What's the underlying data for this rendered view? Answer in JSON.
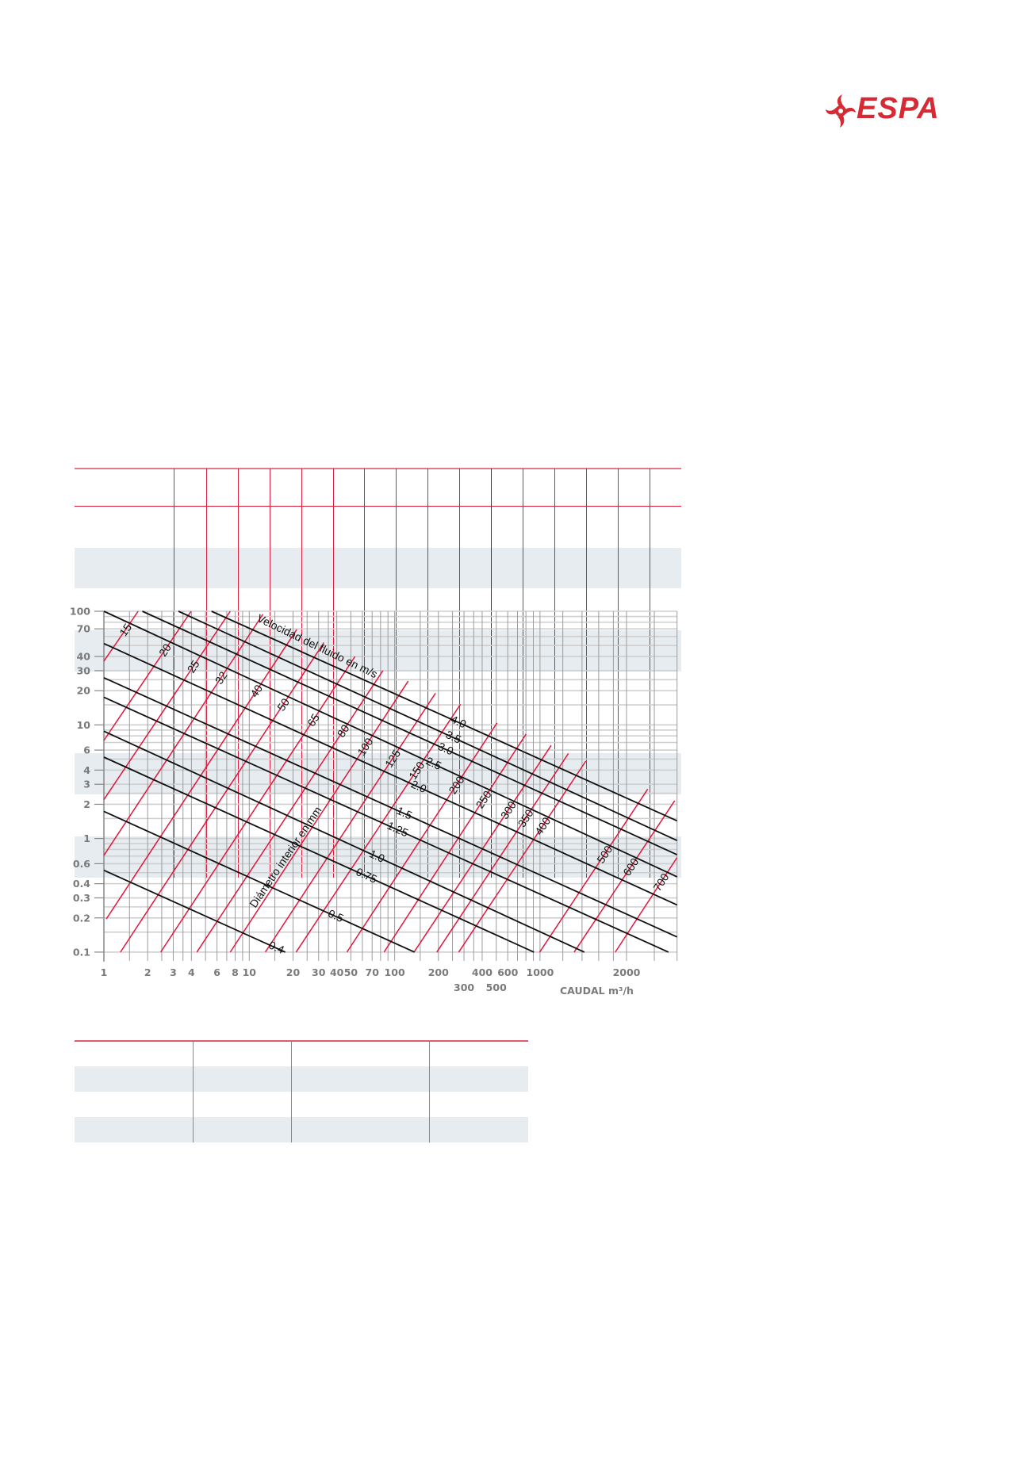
{
  "logo": {
    "text": "ESPA",
    "icon": "impeller-swirl-icon",
    "color": "#d62a35"
  },
  "colors": {
    "accent_red": "#dc1f3c",
    "table_band": "#e6ecef",
    "grid": "#a8a8a8",
    "velocity_line": "#111111",
    "diameter_line": "#e0163d"
  },
  "chart_data": {
    "type": "line",
    "xscale": "log",
    "yscale": "log",
    "xlim": [
      1,
      3000
    ],
    "ylim": [
      0.1,
      100
    ],
    "grid": true,
    "xlabel": "CAUDAL  m³/h",
    "velocity_title": "Velocidad del fluido en m/s",
    "diameter_title": "Diámetro interior en mm",
    "x_ticks": [
      {
        "value": 1,
        "label": "1"
      },
      {
        "value": 2,
        "label": "2"
      },
      {
        "value": 3,
        "label": "3"
      },
      {
        "value": 4,
        "label": "4"
      },
      {
        "value": 6,
        "label": "6"
      },
      {
        "value": 8,
        "label": "8"
      },
      {
        "value": 10,
        "label": "10"
      },
      {
        "value": 20,
        "label": "20"
      },
      {
        "value": 30,
        "label": "30"
      },
      {
        "value": 40,
        "label": "40"
      },
      {
        "value": 50,
        "label": "50"
      },
      {
        "value": 70,
        "label": "70"
      },
      {
        "value": 100,
        "label": "100"
      },
      {
        "value": 200,
        "label": "200"
      },
      {
        "value": 300,
        "label": "300"
      },
      {
        "value": 400,
        "label": "400"
      },
      {
        "value": 500,
        "label": "500"
      },
      {
        "value": 600,
        "label": "600"
      },
      {
        "value": 1000,
        "label": "1000"
      },
      {
        "value": 2000,
        "label": "2000"
      }
    ],
    "y_ticks": [
      {
        "value": 100,
        "label": "100"
      },
      {
        "value": 70,
        "label": "70"
      },
      {
        "value": 40,
        "label": "40"
      },
      {
        "value": 30,
        "label": "30"
      },
      {
        "value": 20,
        "label": "20"
      },
      {
        "value": 10,
        "label": "10"
      },
      {
        "value": 6,
        "label": "6"
      },
      {
        "value": 4,
        "label": "4"
      },
      {
        "value": 3,
        "label": "3"
      },
      {
        "value": 2,
        "label": "2"
      },
      {
        "value": 1,
        "label": "1"
      },
      {
        "value": 0.6,
        "label": "0.6"
      },
      {
        "value": 0.4,
        "label": "0.4"
      },
      {
        "value": 0.3,
        "label": "0.3"
      },
      {
        "value": 0.2,
        "label": "0.2"
      },
      {
        "value": 0.1,
        "label": "0.1"
      }
    ],
    "velocity_series": [
      {
        "name": "4.0",
        "points": [
          [
            5.5,
            100
          ],
          [
            3000,
            1.43
          ]
        ]
      },
      {
        "name": "3.5",
        "points": [
          [
            3.26,
            100
          ],
          [
            3000,
            0.96
          ]
        ]
      },
      {
        "name": "3.0",
        "points": [
          [
            1.84,
            100
          ],
          [
            3000,
            0.72
          ]
        ]
      },
      {
        "name": "2.5",
        "points": [
          [
            1,
            100
          ],
          [
            3000,
            0.46
          ]
        ]
      },
      {
        "name": "2.0",
        "points": [
          [
            1,
            52
          ],
          [
            3000,
            0.26
          ]
        ]
      },
      {
        "name": "1.5",
        "points": [
          [
            1,
            26
          ],
          [
            3000,
            0.136
          ]
        ]
      },
      {
        "name": "1.25",
        "points": [
          [
            1,
            17.5
          ],
          [
            2800,
            0.1
          ]
        ]
      },
      {
        "name": "1.0",
        "points": [
          [
            1,
            8.8
          ],
          [
            1426,
            0.1
          ]
        ]
      },
      {
        "name": "0.75",
        "points": [
          [
            1,
            5.2
          ],
          [
            908,
            0.1
          ]
        ]
      },
      {
        "name": "0.5",
        "points": [
          [
            1,
            1.73
          ],
          [
            137,
            0.1
          ]
        ]
      },
      {
        "name": "0.4",
        "points": [
          [
            1,
            0.525
          ],
          [
            17.7,
            0.1
          ]
        ]
      }
    ],
    "diameter_series": [
      {
        "name": "15",
        "points": [
          [
            1,
            36.4
          ],
          [
            1.72,
            100
          ]
        ]
      },
      {
        "name": "20",
        "points": [
          [
            1,
            7.3
          ],
          [
            3.98,
            100
          ]
        ]
      },
      {
        "name": "25",
        "points": [
          [
            1,
            2.2
          ],
          [
            7.4,
            100
          ]
        ]
      },
      {
        "name": "32",
        "points": [
          [
            1,
            0.71
          ],
          [
            12.4,
            94
          ]
        ]
      },
      {
        "name": "40",
        "points": [
          [
            1.04,
            0.196
          ],
          [
            21.2,
            69
          ]
        ]
      },
      {
        "name": "50",
        "points": [
          [
            1.3,
            0.1
          ],
          [
            32.6,
            53
          ]
        ]
      },
      {
        "name": "65",
        "points": [
          [
            2.46,
            0.1
          ],
          [
            53.4,
            40
          ]
        ]
      },
      {
        "name": "80",
        "points": [
          [
            4.36,
            0.1
          ],
          [
            83,
            30
          ]
        ]
      },
      {
        "name": "100",
        "points": [
          [
            7.4,
            0.1
          ],
          [
            124,
            24.3
          ]
        ]
      },
      {
        "name": "125",
        "points": [
          [
            12.9,
            0.1
          ],
          [
            191,
            19
          ]
        ]
      },
      {
        "name": "150",
        "points": [
          [
            21,
            0.1
          ],
          [
            284,
            15.2
          ]
        ]
      },
      {
        "name": "200",
        "points": [
          [
            47,
            0.1
          ],
          [
            506,
            10.4
          ]
        ]
      },
      {
        "name": "250",
        "points": [
          [
            84.6,
            0.1
          ],
          [
            802,
            8.3
          ]
        ]
      },
      {
        "name": "300",
        "points": [
          [
            136,
            0.1
          ],
          [
            1093,
            6.6
          ]
        ]
      },
      {
        "name": "350",
        "points": [
          [
            195,
            0.1
          ],
          [
            1255,
            5.6
          ]
        ]
      },
      {
        "name": "400",
        "points": [
          [
            276,
            0.1
          ],
          [
            1443,
            4.8
          ]
        ]
      },
      {
        "name": "500",
        "points": [
          [
            995,
            0.1
          ],
          [
            2371,
            2.72
          ]
        ]
      },
      {
        "name": "600",
        "points": [
          [
            1314,
            0.1
          ],
          [
            2944,
            2.15
          ]
        ]
      },
      {
        "name": "700",
        "points": [
          [
            1828,
            0.1
          ],
          [
            3000,
            0.68
          ]
        ]
      }
    ]
  }
}
